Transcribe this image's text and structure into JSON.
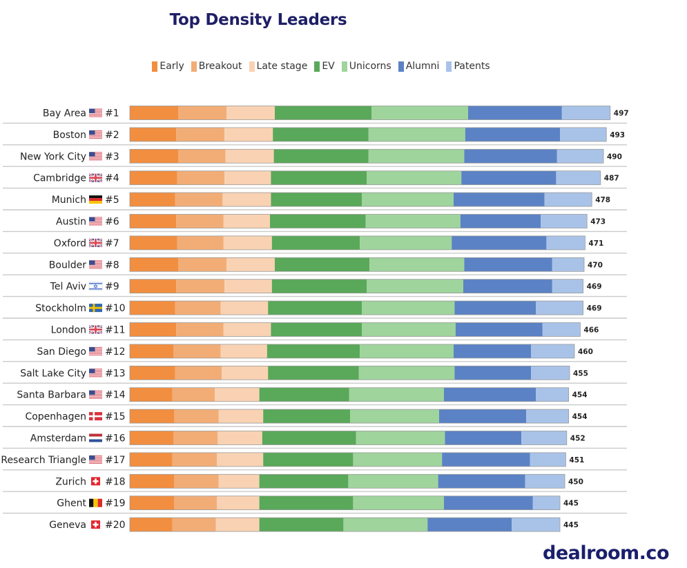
{
  "brand": "dealroom.co",
  "chart_data": {
    "type": "bar",
    "orientation": "horizontal",
    "stacked": true,
    "title": "Top Density Leaders",
    "legend_position": "top",
    "series": [
      {
        "name": "Early",
        "color": "#f28e3f"
      },
      {
        "name": "Breakout",
        "color": "#f2ad76"
      },
      {
        "name": "Late stage",
        "color": "#f9d2b3"
      },
      {
        "name": "EV",
        "color": "#5aa85a"
      },
      {
        "name": "Unicorns",
        "color": "#9fd49c"
      },
      {
        "name": "Alumni",
        "color": "#5b82c4"
      },
      {
        "name": "Patents",
        "color": "#a9c3e8"
      }
    ],
    "categories": [
      {
        "name": "Bay Area",
        "flag": "us-flag",
        "rank": "#1",
        "total": 497,
        "values": [
          50,
          50,
          50,
          100,
          100,
          97,
          50
        ]
      },
      {
        "name": "Boston",
        "flag": "us-flag",
        "rank": "#2",
        "total": 493,
        "values": [
          48,
          50,
          50,
          99,
          100,
          98,
          48
        ]
      },
      {
        "name": "New York City",
        "flag": "us-flag",
        "rank": "#3",
        "total": 490,
        "values": [
          50,
          49,
          50,
          98,
          99,
          96,
          48
        ]
      },
      {
        "name": "Cambridge",
        "flag": "uk-flag",
        "rank": "#4",
        "total": 487,
        "values": [
          49,
          49,
          48,
          99,
          98,
          98,
          46
        ]
      },
      {
        "name": "Munich",
        "flag": "germany-flag",
        "rank": "#5",
        "total": 478,
        "values": [
          47,
          49,
          50,
          94,
          95,
          94,
          49
        ]
      },
      {
        "name": "Austin",
        "flag": "us-flag",
        "rank": "#6",
        "total": 473,
        "values": [
          48,
          49,
          48,
          99,
          98,
          83,
          48
        ]
      },
      {
        "name": "Oxford",
        "flag": "uk-flag",
        "rank": "#7",
        "total": 471,
        "values": [
          49,
          48,
          50,
          91,
          95,
          98,
          40
        ]
      },
      {
        "name": "Boulder",
        "flag": "us-flag",
        "rank": "#8",
        "total": 470,
        "values": [
          50,
          50,
          50,
          98,
          98,
          91,
          33
        ]
      },
      {
        "name": "Tel Aviv",
        "flag": "israel-flag",
        "rank": "#9",
        "total": 469,
        "values": [
          48,
          50,
          49,
          98,
          100,
          92,
          32
        ]
      },
      {
        "name": "Stockholm",
        "flag": "sweden-flag",
        "rank": "#10",
        "total": 469,
        "values": [
          47,
          47,
          49,
          97,
          96,
          84,
          49
        ]
      },
      {
        "name": "London",
        "flag": "uk-flag",
        "rank": "#11",
        "total": 466,
        "values": [
          48,
          49,
          49,
          94,
          97,
          90,
          39
        ]
      },
      {
        "name": "San Diego",
        "flag": "us-flag",
        "rank": "#12",
        "total": 460,
        "values": [
          45,
          49,
          48,
          96,
          97,
          80,
          45
        ]
      },
      {
        "name": "Salt Lake City",
        "flag": "us-flag",
        "rank": "#13",
        "total": 455,
        "values": [
          47,
          48,
          48,
          94,
          99,
          79,
          40
        ]
      },
      {
        "name": "Santa Barbara",
        "flag": "us-flag",
        "rank": "#14",
        "total": 454,
        "values": [
          44,
          44,
          46,
          93,
          98,
          95,
          34
        ]
      },
      {
        "name": "Copenhagen",
        "flag": "denmark-flag",
        "rank": "#15",
        "total": 454,
        "values": [
          46,
          46,
          46,
          90,
          92,
          90,
          44
        ]
      },
      {
        "name": "Amsterdam",
        "flag": "netherlands-flag",
        "rank": "#16",
        "total": 452,
        "values": [
          45,
          46,
          46,
          97,
          92,
          79,
          47
        ]
      },
      {
        "name": "Research Triangle",
        "flag": "us-flag",
        "rank": "#17",
        "total": 451,
        "values": [
          44,
          46,
          48,
          93,
          92,
          91,
          37
        ]
      },
      {
        "name": "Zurich",
        "flag": "switzerland-flag",
        "rank": "#18",
        "total": 450,
        "values": [
          46,
          46,
          42,
          92,
          93,
          90,
          41
        ]
      },
      {
        "name": "Ghent",
        "flag": "belgium-flag",
        "rank": "#19",
        "total": 445,
        "values": [
          46,
          44,
          44,
          97,
          94,
          92,
          28
        ]
      },
      {
        "name": "Geneva",
        "flag": "switzerland-flag",
        "rank": "#20",
        "total": 445,
        "values": [
          44,
          45,
          45,
          87,
          87,
          87,
          50
        ]
      }
    ]
  }
}
